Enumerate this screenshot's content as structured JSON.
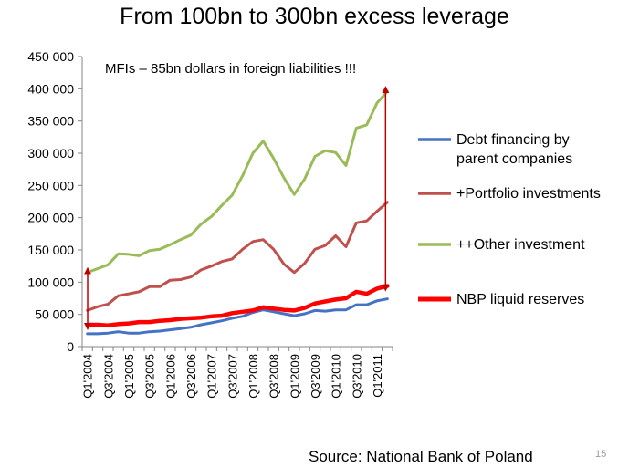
{
  "title": "From 100bn to 300bn excess leverage",
  "source": "Source: National Bank of Poland",
  "page_number": "15",
  "chart_data": {
    "type": "line",
    "title": "From 100bn to 300bn excess leverage",
    "annotation": "MFIs – 85bn dollars in foreign liabilities !!!",
    "ylim": [
      0,
      450000
    ],
    "yticks": [
      0,
      50000,
      100000,
      150000,
      200000,
      250000,
      300000,
      350000,
      400000,
      450000
    ],
    "ytick_labels": [
      "0",
      "50 000",
      "100 000",
      "150 000",
      "200 000",
      "250 000",
      "300 000",
      "350 000",
      "400 000",
      "450 000"
    ],
    "x": [
      "Q1'2004",
      "Q2'2004",
      "Q3'2004",
      "Q4'2004",
      "Q1'2005",
      "Q2'2005",
      "Q3'2005",
      "Q4'2005",
      "Q1'2006",
      "Q2'2006",
      "Q3'2006",
      "Q4'2006",
      "Q1'2007",
      "Q2'2007",
      "Q3'2007",
      "Q4'2007",
      "Q1'2008",
      "Q2'2008",
      "Q3'2008",
      "Q4'2008",
      "Q1'2009",
      "Q2'2009",
      "Q3'2009",
      "Q4'2009",
      "Q1'2010",
      "Q2'2010",
      "Q3'2010",
      "Q4'2010",
      "Q1'2011",
      "Q2'2011"
    ],
    "x_tick_labels": [
      "Q1'2004",
      "Q3'2004",
      "Q1'2005",
      "Q3'2005",
      "Q1'2006",
      "Q3'2006",
      "Q1'2007",
      "Q3'2007",
      "Q1'2008",
      "Q3'2008",
      "Q1'2009",
      "Q3'2009",
      "Q1'2010",
      "Q3'2010",
      "Q1'2011"
    ],
    "legend_position": "right",
    "series": [
      {
        "name": "Debt financing by parent companies",
        "color": "#4472C4",
        "values": [
          20000,
          20000,
          21000,
          23000,
          21000,
          21000,
          23000,
          24000,
          26000,
          28000,
          30000,
          34000,
          37000,
          40000,
          44000,
          47000,
          53000,
          57000,
          54000,
          51000,
          48000,
          51000,
          56000,
          55000,
          57000,
          57000,
          65000,
          65000,
          71000,
          74000
        ]
      },
      {
        "name": "+Portfolio investments",
        "color": "#C0504D",
        "values": [
          56000,
          62000,
          66000,
          79000,
          82000,
          85000,
          93000,
          93000,
          103000,
          104000,
          108000,
          119000,
          125000,
          132000,
          136000,
          151000,
          163000,
          166000,
          151000,
          128000,
          115000,
          129000,
          151000,
          157000,
          172000,
          155000,
          192000,
          195000,
          210000,
          224000
        ]
      },
      {
        "name": "++Other investment",
        "color": "#9BBB59",
        "values": [
          115000,
          121000,
          127000,
          144000,
          143000,
          141000,
          149000,
          151000,
          158000,
          166000,
          173000,
          190000,
          202000,
          219000,
          235000,
          265000,
          300000,
          319000,
          292000,
          262000,
          236000,
          260000,
          295000,
          304000,
          301000,
          281000,
          339000,
          344000,
          378000,
          396000
        ]
      },
      {
        "name": "NBP liquid reserves",
        "color": "#FF0000",
        "values": [
          34000,
          34000,
          33000,
          35000,
          36000,
          38000,
          38000,
          40000,
          41000,
          43000,
          44000,
          45000,
          47000,
          48000,
          52000,
          54000,
          56000,
          61000,
          59000,
          57000,
          56000,
          60000,
          67000,
          70000,
          73000,
          75000,
          85000,
          82000,
          90000,
          94000
        ]
      }
    ],
    "arrows": [
      {
        "x": "Q1'2004",
        "from": 34000,
        "to": 115000,
        "color": "#C00000"
      },
      {
        "x": "Q2'2011",
        "from": 94000,
        "to": 396000,
        "color": "#C00000"
      }
    ]
  }
}
